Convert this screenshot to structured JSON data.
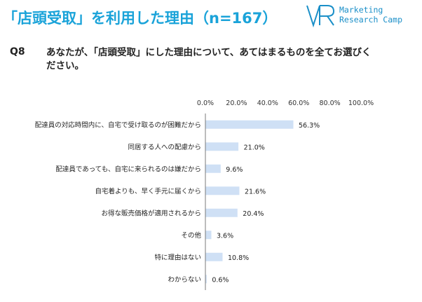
{
  "page": {
    "title": "「店頭受取」を利用した理由（n=167）",
    "brand": {
      "line1": "Marketing",
      "line2": "Research Camp",
      "color": "#1a8fc8"
    },
    "question_number": "Q8",
    "question_text": "あなたが、「店頭受取」にした理由について、あてはまるものを全てお選びください。",
    "title_color": "#1aa3d9"
  },
  "chart_data": {
    "type": "bar",
    "orientation": "horizontal",
    "categories": [
      "配達員の対応時間内に、自宅で受け取るのが困難だから",
      "同居する人への配慮から",
      "配達員であっても、自宅に来られるのは嫌だから",
      "自宅着よりも、早く手元に届くから",
      "お得な販売価格が適用されるから",
      "その他",
      "特に理由はない",
      "わからない"
    ],
    "values": [
      56.3,
      21.0,
      9.6,
      21.6,
      20.4,
      3.6,
      10.8,
      0.6
    ],
    "value_labels": [
      "56.3%",
      "21.0%",
      "9.6%",
      "21.6%",
      "20.4%",
      "3.6%",
      "10.8%",
      "0.6%"
    ],
    "xlim": [
      0,
      100
    ],
    "ticks": [
      0,
      20,
      40,
      60,
      80,
      100
    ],
    "tick_labels": [
      "0.0%",
      "20.0%",
      "40.0%",
      "60.0%",
      "80.0%",
      "100.0%"
    ],
    "grid": false,
    "bar_color": "#cfe0f5",
    "axis_color": "#7a7a7a"
  }
}
